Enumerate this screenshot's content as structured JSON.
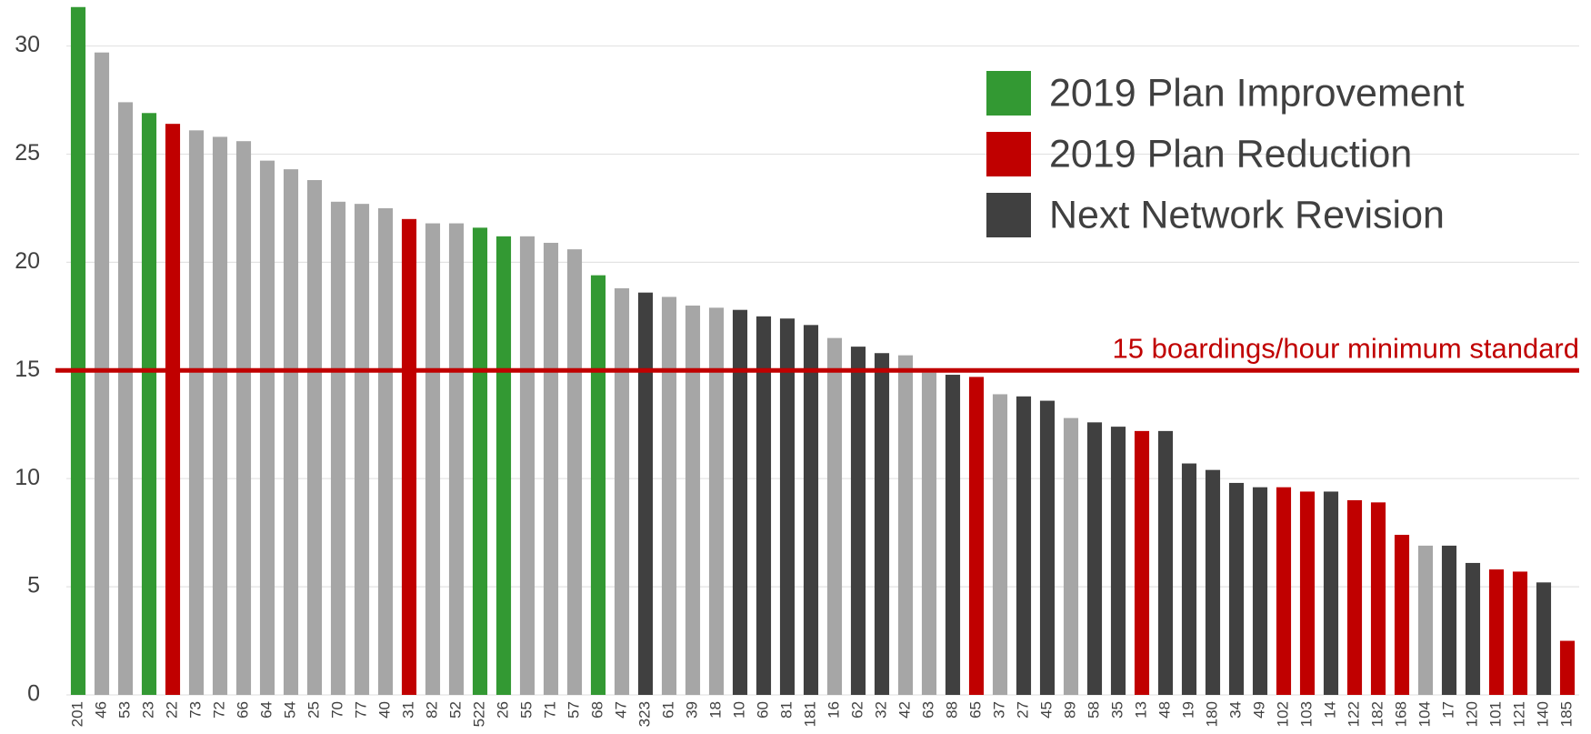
{
  "chart_data": {
    "type": "bar",
    "categories": [
      "201",
      "46",
      "53",
      "23",
      "22",
      "73",
      "72",
      "66",
      "64",
      "54",
      "25",
      "70",
      "77",
      "40",
      "31",
      "82",
      "52",
      "522",
      "26",
      "55",
      "71",
      "57",
      "68",
      "47",
      "323",
      "61",
      "39",
      "18",
      "10",
      "60",
      "81",
      "181",
      "16",
      "62",
      "32",
      "42",
      "63",
      "88",
      "65",
      "37",
      "27",
      "45",
      "89",
      "58",
      "35",
      "13",
      "48",
      "19",
      "180",
      "34",
      "49",
      "102",
      "103",
      "14",
      "122",
      "182",
      "168",
      "104",
      "17",
      "120",
      "101",
      "121",
      "140",
      "185"
    ],
    "values": [
      31.8,
      29.7,
      27.4,
      26.9,
      26.4,
      26.1,
      25.8,
      25.6,
      24.7,
      24.3,
      23.8,
      22.8,
      22.7,
      22.5,
      22.0,
      21.8,
      21.8,
      21.6,
      21.2,
      21.2,
      20.9,
      20.6,
      19.4,
      18.8,
      18.6,
      18.4,
      18.0,
      17.9,
      17.8,
      17.5,
      17.4,
      17.1,
      16.5,
      16.1,
      15.8,
      15.7,
      14.9,
      14.8,
      14.7,
      13.9,
      13.8,
      13.6,
      12.8,
      12.6,
      12.4,
      12.2,
      12.2,
      10.7,
      10.4,
      9.8,
      9.6,
      9.6,
      9.4,
      9.4,
      9.0,
      8.9,
      7.4,
      6.9,
      6.9,
      6.1,
      5.8,
      5.7,
      5.2,
      2.5
    ],
    "bar_colors": [
      "#339933",
      "#a6a6a6",
      "#a6a6a6",
      "#339933",
      "#c00000",
      "#a6a6a6",
      "#a6a6a6",
      "#a6a6a6",
      "#a6a6a6",
      "#a6a6a6",
      "#a6a6a6",
      "#a6a6a6",
      "#a6a6a6",
      "#a6a6a6",
      "#c00000",
      "#a6a6a6",
      "#a6a6a6",
      "#339933",
      "#339933",
      "#a6a6a6",
      "#a6a6a6",
      "#a6a6a6",
      "#339933",
      "#a6a6a6",
      "#404040",
      "#a6a6a6",
      "#a6a6a6",
      "#a6a6a6",
      "#404040",
      "#404040",
      "#404040",
      "#404040",
      "#a6a6a6",
      "#404040",
      "#404040",
      "#a6a6a6",
      "#a6a6a6",
      "#404040",
      "#c00000",
      "#a6a6a6",
      "#404040",
      "#404040",
      "#a6a6a6",
      "#404040",
      "#404040",
      "#c00000",
      "#404040",
      "#404040",
      "#404040",
      "#404040",
      "#404040",
      "#c00000",
      "#c00000",
      "#404040",
      "#c00000",
      "#c00000",
      "#c00000",
      "#a6a6a6",
      "#404040",
      "#404040",
      "#c00000",
      "#c00000",
      "#404040",
      "#c00000"
    ],
    "legend": [
      {
        "name": "2019 Plan Improvement",
        "color": "#339933"
      },
      {
        "name": "2019 Plan Reduction",
        "color": "#c00000"
      },
      {
        "name": "Next Network Revision",
        "color": "#404040"
      }
    ],
    "reference_line": {
      "value": 15,
      "label": "15 boardings/hour minimum standard",
      "color": "#c00000"
    },
    "ylim": [
      0,
      32
    ],
    "yticks": [
      0,
      5,
      10,
      15,
      20,
      25,
      30
    ],
    "grid": true
  }
}
